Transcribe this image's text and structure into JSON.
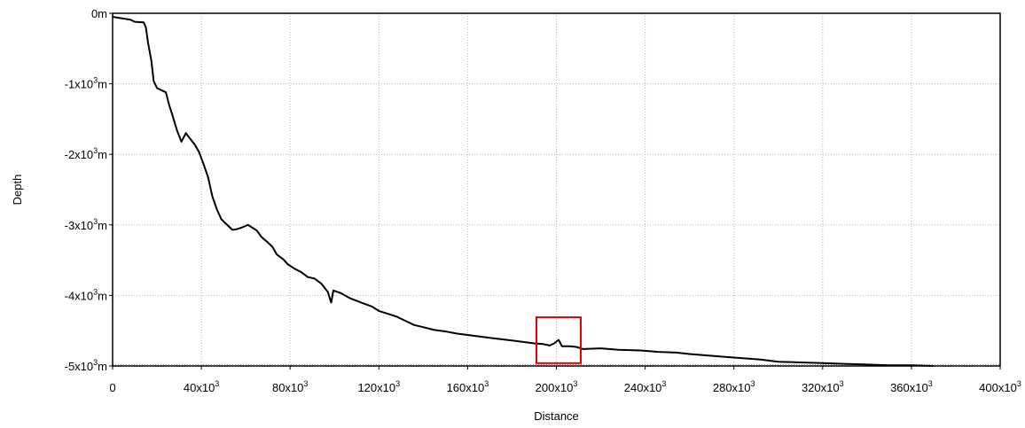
{
  "chart_data": {
    "type": "line",
    "xlabel": "Distance",
    "ylabel": "Depth",
    "xlim": [
      0,
      400000
    ],
    "ylim": [
      -5000,
      0
    ],
    "grid": true,
    "x_ticks": [
      {
        "value": 0,
        "base": "0",
        "sup": ""
      },
      {
        "value": 40000,
        "base": "40x10",
        "sup": "3"
      },
      {
        "value": 80000,
        "base": "80x10",
        "sup": "3"
      },
      {
        "value": 120000,
        "base": "120x10",
        "sup": "3"
      },
      {
        "value": 160000,
        "base": "160x10",
        "sup": "3"
      },
      {
        "value": 200000,
        "base": "200x10",
        "sup": "3"
      },
      {
        "value": 240000,
        "base": "240x10",
        "sup": "3"
      },
      {
        "value": 280000,
        "base": "280x10",
        "sup": "3"
      },
      {
        "value": 320000,
        "base": "320x10",
        "sup": "3"
      },
      {
        "value": 360000,
        "base": "360x10",
        "sup": "3"
      },
      {
        "value": 400000,
        "base": "400x10",
        "sup": "3"
      }
    ],
    "y_ticks": [
      {
        "value": 0,
        "base": "0m",
        "sup": "",
        "suffix": ""
      },
      {
        "value": -1000,
        "base": "-1x10",
        "sup": "3",
        "suffix": "m"
      },
      {
        "value": -2000,
        "base": "-2x10",
        "sup": "3",
        "suffix": "m"
      },
      {
        "value": -3000,
        "base": "-3x10",
        "sup": "3",
        "suffix": "m"
      },
      {
        "value": -4000,
        "base": "-4x10",
        "sup": "3",
        "suffix": "m"
      },
      {
        "value": -5000,
        "base": "-5x10",
        "sup": "3",
        "suffix": "m"
      }
    ],
    "series": [
      {
        "color": "#000000",
        "points": [
          [
            0,
            -50
          ],
          [
            4000,
            -70
          ],
          [
            8000,
            -90
          ],
          [
            10000,
            -120
          ],
          [
            14000,
            -130
          ],
          [
            15000,
            -200
          ],
          [
            16000,
            -420
          ],
          [
            17500,
            -680
          ],
          [
            18500,
            -960
          ],
          [
            20000,
            -1060
          ],
          [
            22000,
            -1090
          ],
          [
            24000,
            -1120
          ],
          [
            25500,
            -1300
          ],
          [
            27000,
            -1450
          ],
          [
            29000,
            -1660
          ],
          [
            31000,
            -1820
          ],
          [
            33000,
            -1700
          ],
          [
            35000,
            -1780
          ],
          [
            37000,
            -1860
          ],
          [
            39000,
            -1970
          ],
          [
            41000,
            -2140
          ],
          [
            43000,
            -2320
          ],
          [
            45000,
            -2600
          ],
          [
            47000,
            -2780
          ],
          [
            49000,
            -2920
          ],
          [
            52000,
            -3010
          ],
          [
            54000,
            -3070
          ],
          [
            56000,
            -3060
          ],
          [
            58000,
            -3040
          ],
          [
            61000,
            -3000
          ],
          [
            63000,
            -3040
          ],
          [
            65000,
            -3080
          ],
          [
            67000,
            -3170
          ],
          [
            70000,
            -3250
          ],
          [
            72000,
            -3310
          ],
          [
            74000,
            -3420
          ],
          [
            77000,
            -3490
          ],
          [
            79000,
            -3560
          ],
          [
            82000,
            -3620
          ],
          [
            85000,
            -3670
          ],
          [
            88000,
            -3740
          ],
          [
            91000,
            -3760
          ],
          [
            94000,
            -3830
          ],
          [
            97000,
            -3950
          ],
          [
            98500,
            -4100
          ],
          [
            99500,
            -3930
          ],
          [
            103000,
            -3970
          ],
          [
            107000,
            -4040
          ],
          [
            112000,
            -4100
          ],
          [
            117000,
            -4160
          ],
          [
            120000,
            -4220
          ],
          [
            124000,
            -4260
          ],
          [
            128000,
            -4300
          ],
          [
            132000,
            -4360
          ],
          [
            136000,
            -4420
          ],
          [
            140000,
            -4450
          ],
          [
            145000,
            -4490
          ],
          [
            150000,
            -4510
          ],
          [
            155000,
            -4540
          ],
          [
            160000,
            -4560
          ],
          [
            165000,
            -4580
          ],
          [
            170000,
            -4600
          ],
          [
            175000,
            -4620
          ],
          [
            180000,
            -4640
          ],
          [
            185000,
            -4660
          ],
          [
            190000,
            -4680
          ],
          [
            194000,
            -4690
          ],
          [
            197000,
            -4710
          ],
          [
            199000,
            -4680
          ],
          [
            201000,
            -4630
          ],
          [
            202500,
            -4720
          ],
          [
            206000,
            -4720
          ],
          [
            209000,
            -4730
          ],
          [
            212000,
            -4760
          ],
          [
            220000,
            -4750
          ],
          [
            228000,
            -4770
          ],
          [
            238000,
            -4780
          ],
          [
            246000,
            -4800
          ],
          [
            254000,
            -4810
          ],
          [
            260000,
            -4830
          ],
          [
            268000,
            -4850
          ],
          [
            276000,
            -4870
          ],
          [
            284000,
            -4890
          ],
          [
            292000,
            -4910
          ],
          [
            300000,
            -4940
          ],
          [
            310000,
            -4950
          ],
          [
            320000,
            -4960
          ],
          [
            330000,
            -4970
          ],
          [
            340000,
            -4980
          ],
          [
            350000,
            -4990
          ],
          [
            360000,
            -4990
          ],
          [
            370000,
            -5000
          ]
        ]
      }
    ],
    "highlight_box": {
      "color": "#e00000",
      "x_range": [
        191000,
        211000
      ],
      "y_range": [
        -4960,
        -4310
      ]
    }
  }
}
